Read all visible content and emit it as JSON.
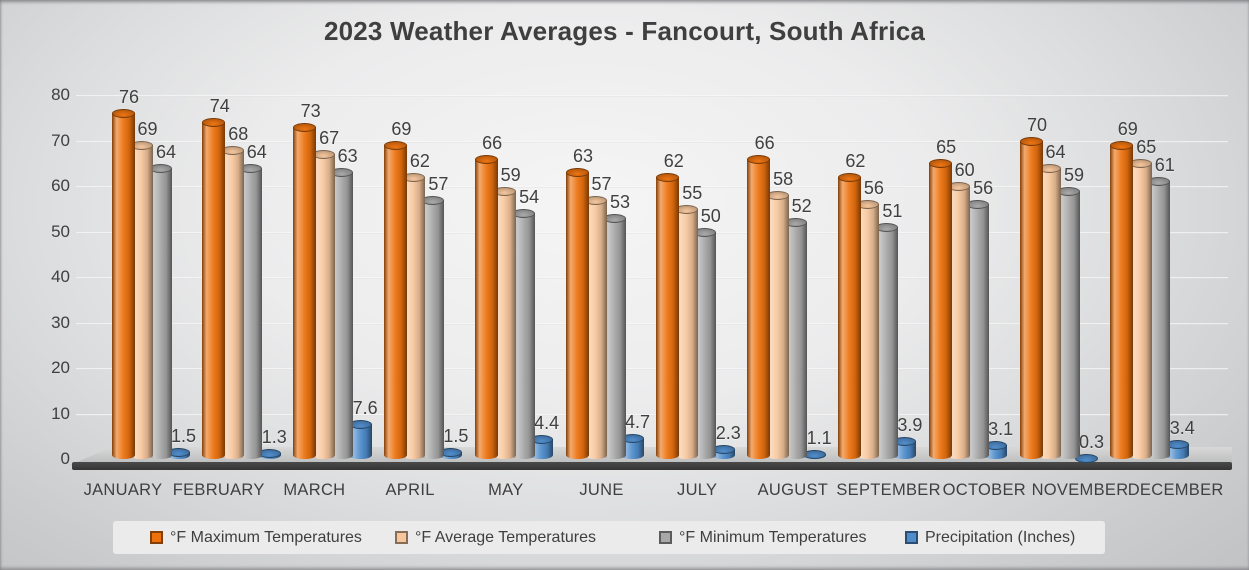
{
  "title": "2023 Weather Averages - Fancourt, South Africa",
  "chart_data": {
    "type": "bar",
    "style": "3d-cylinder",
    "title": "2023 Weather Averages - Fancourt, South Africa",
    "categories": [
      "JANUARY",
      "FEBRUARY",
      "MARCH",
      "APRIL",
      "MAY",
      "JUNE",
      "JULY",
      "AUGUST",
      "SEPTEMBER",
      "OCTOBER",
      "NOVEMBER",
      "DECEMBER"
    ],
    "series": [
      {
        "name": "°F Maximum Temperatures",
        "color": "#ED720E",
        "values": [
          76,
          74,
          73,
          69,
          66,
          63,
          62,
          66,
          62,
          65,
          70,
          69
        ]
      },
      {
        "name": "°F Average Temperatures",
        "color": "#F6C69C",
        "values": [
          69,
          68,
          67,
          62,
          59,
          57,
          55,
          58,
          56,
          60,
          64,
          65
        ]
      },
      {
        "name": "°F Minimum Temperatures",
        "color": "#A8A8A8",
        "values": [
          64,
          64,
          63,
          57,
          54,
          53,
          50,
          52,
          51,
          56,
          59,
          61
        ]
      },
      {
        "name": "Precipitation (Inches)",
        "color": "#4E8CCB",
        "values": [
          1.5,
          1.3,
          7.6,
          1.5,
          4.4,
          4.7,
          2.3,
          1.1,
          3.9,
          3.1,
          0.3,
          3.4
        ]
      }
    ],
    "ylim": [
      0,
      80
    ],
    "ytick_step": 10,
    "yticks": [
      0,
      10,
      20,
      30,
      40,
      50,
      60,
      70,
      80
    ],
    "xlabel": "",
    "ylabel": "",
    "grid": true,
    "legend_position": "bottom",
    "data_labels": true
  }
}
